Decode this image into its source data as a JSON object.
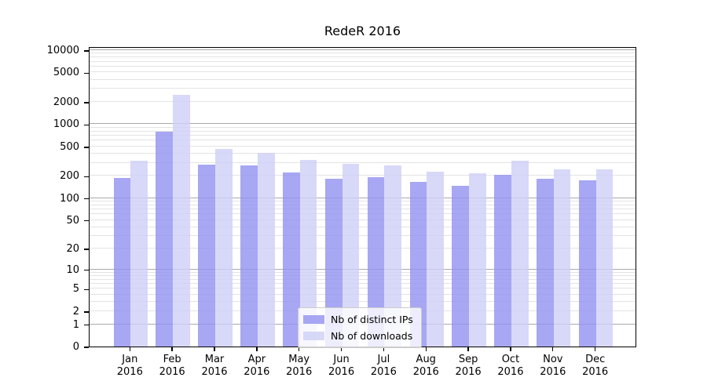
{
  "chart_data": {
    "type": "bar",
    "title": "RedeR 2016",
    "categories": [
      "Jan",
      "Feb",
      "Mar",
      "Apr",
      "May",
      "Jun",
      "Jul",
      "Aug",
      "Sep",
      "Oct",
      "Nov",
      "Dec"
    ],
    "category_year": "2016",
    "series": [
      {
        "name": "Nb of distinct IPs",
        "values": [
          186,
          793,
          285,
          278,
          222,
          184,
          194,
          165,
          145,
          206,
          184,
          176
        ]
      },
      {
        "name": "Nb of downloads",
        "values": [
          324,
          2477,
          464,
          411,
          332,
          292,
          278,
          228,
          219,
          319,
          245,
          247
        ]
      }
    ],
    "yscale": "log10(value+1)",
    "ylim": [
      0,
      10000
    ],
    "yticks": [
      10000,
      5000,
      2000,
      1000,
      500,
      200,
      100,
      50,
      20,
      10,
      5,
      2,
      1,
      0
    ],
    "grid_major_at": [
      1,
      10,
      100,
      1000,
      10000
    ],
    "grid_minor_multiples": [
      2,
      3,
      4,
      5,
      6,
      7,
      8,
      9
    ],
    "legend_position": "bottom-center-inside"
  },
  "colors": {
    "ips_bar": "rgba(145,145,240,0.8)",
    "downloads_bar": "rgba(206,206,247,0.8)",
    "grid_major": "#a9a9a9",
    "grid_minor": "#e3e3e3",
    "frame": "#000000",
    "background": "#ffffff",
    "text": "#000000"
  }
}
